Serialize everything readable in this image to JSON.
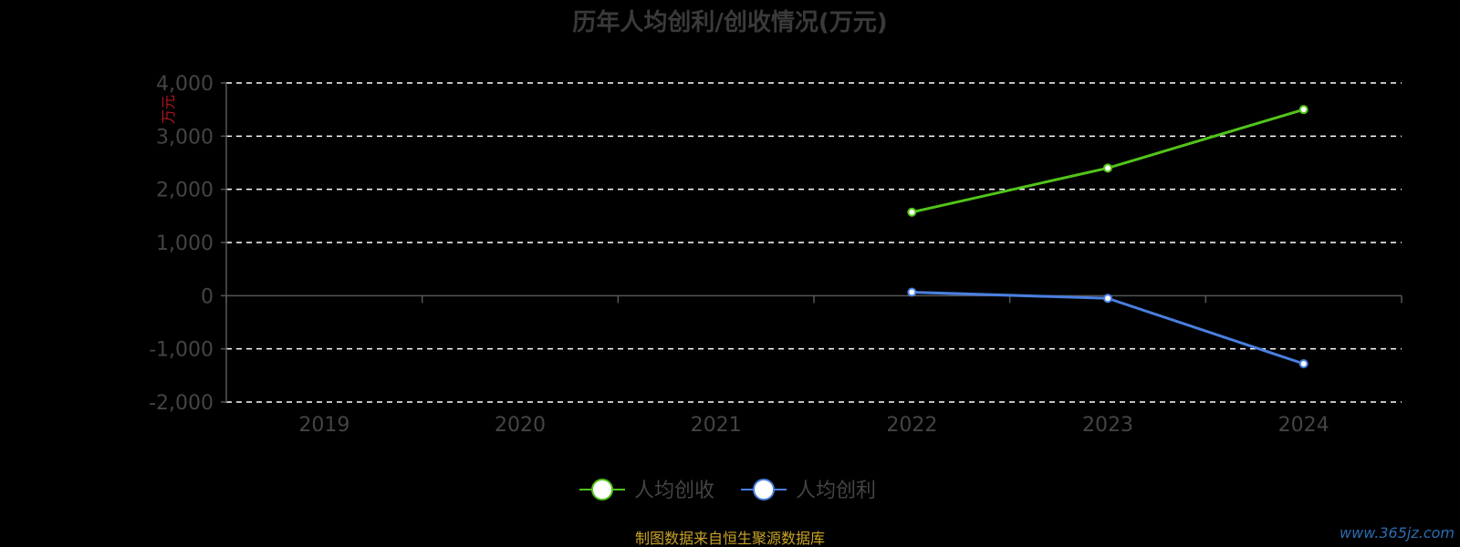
{
  "colors": {
    "background": "#000000",
    "grid": "#ffffff",
    "axis": "#555555",
    "revenue_line": "#52c41a",
    "profit_line": "#4a7fe0",
    "marker_fill": "#ffffff",
    "unit_label": "#b3141b",
    "source_text": "#c9a227",
    "watermark": "#2b6cb0"
  },
  "chart_data": {
    "type": "line",
    "title": "历年人均创利/创收情况(万元)",
    "ylabel": "万元",
    "xlabel": "",
    "categories": [
      "2019",
      "2020",
      "2021",
      "2022",
      "2023",
      "2024"
    ],
    "ylim": [
      -2000,
      4000
    ],
    "yticks": [
      4000,
      3000,
      2000,
      1000,
      0,
      -1000,
      -2000
    ],
    "ytick_labels": [
      "4,000",
      "3,000",
      "2,000",
      "1,000",
      "0",
      "-1,000",
      "-2,000"
    ],
    "grid": true,
    "grid_style": "dashed",
    "legend_position": "bottom-center",
    "series": [
      {
        "name": "人均创收",
        "color": "#52c41a",
        "values": [
          null,
          null,
          null,
          1570,
          2400,
          3500
        ]
      },
      {
        "name": "人均创利",
        "color": "#4a7fe0",
        "values": [
          null,
          null,
          null,
          65,
          -50,
          -1280
        ]
      }
    ]
  },
  "footer": {
    "source": "制图数据来自恒生聚源数据库",
    "watermark": "www.365jz.com"
  }
}
